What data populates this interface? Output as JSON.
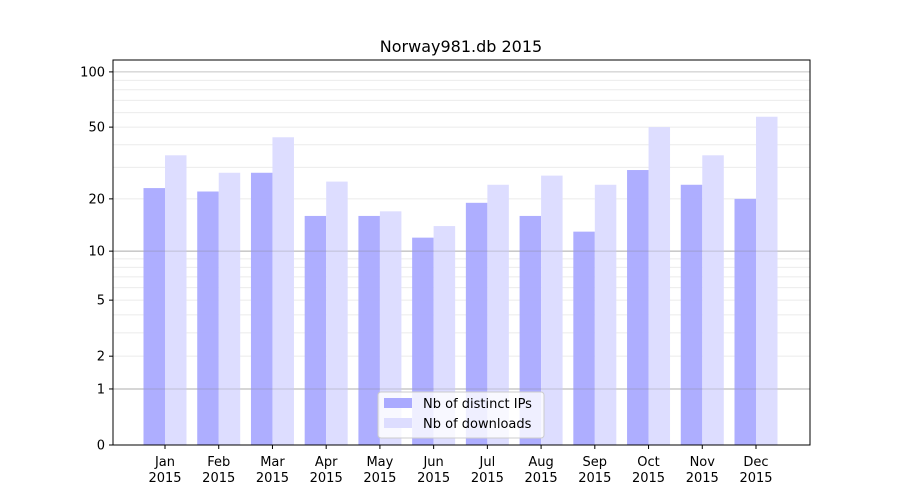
{
  "chart_data": {
    "type": "bar",
    "title": "Norway981.db 2015",
    "xlabel": "",
    "ylabel": "",
    "yscale": "symlog (log10(v+1))",
    "ylim": [
      0,
      116
    ],
    "yticks": [
      0,
      1,
      2,
      5,
      10,
      20,
      50,
      100
    ],
    "grid": true,
    "legend_position": "bottom-center",
    "categories": [
      "Jan\n2015",
      "Feb\n2015",
      "Mar\n2015",
      "Apr\n2015",
      "May\n2015",
      "Jun\n2015",
      "Jul\n2015",
      "Aug\n2015",
      "Sep\n2015",
      "Oct\n2015",
      "Nov\n2015",
      "Dec\n2015"
    ],
    "series": [
      {
        "name": "Nb of distinct IPs",
        "color": "#aaaaff",
        "values": [
          23,
          22,
          28,
          16,
          16,
          12,
          19,
          16,
          13,
          29,
          24,
          20
        ]
      },
      {
        "name": "Nb of downloads",
        "color": "#ddddff",
        "values": [
          35,
          28,
          44,
          25,
          17,
          14,
          24,
          27,
          24,
          50,
          35,
          57
        ]
      }
    ]
  }
}
